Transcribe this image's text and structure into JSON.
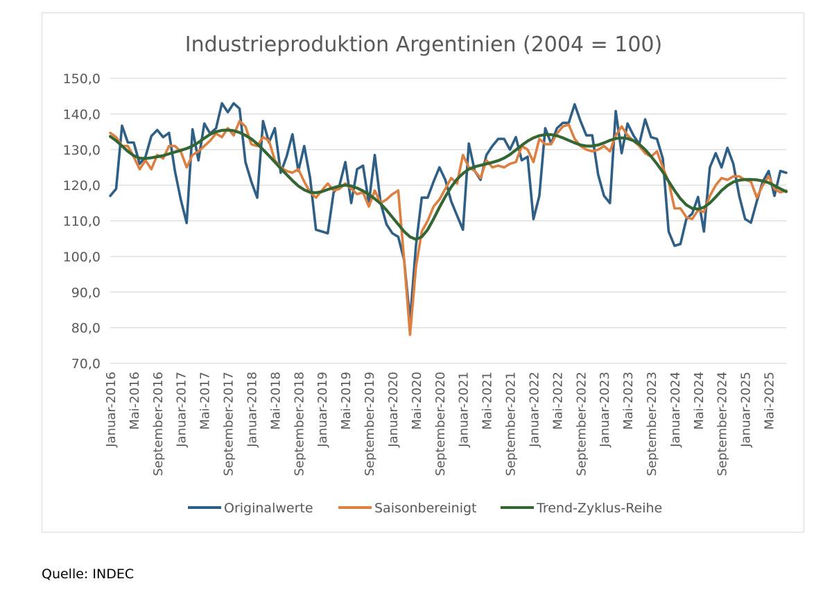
{
  "chart_data": {
    "type": "line",
    "title": "Industrieproduktion Argentinien (2004 = 100)",
    "xlabel": "",
    "ylabel": "",
    "ylim": [
      70,
      150
    ],
    "yticks": [
      "70,0",
      "80,0",
      "90,0",
      "100,0",
      "110,0",
      "120,0",
      "130,0",
      "140,0",
      "150,0"
    ],
    "y_grid": true,
    "legend_position": "bottom",
    "x_tick_labels": [
      "Januar-2016",
      "Mai-2016",
      "September-2016",
      "Januar-2017",
      "Mai-2017",
      "September-2017",
      "Januar-2018",
      "Mai-2018",
      "September-2018",
      "Januar-2019",
      "Mai-2019",
      "September-2019",
      "Januar-2020",
      "Mai-2020",
      "September-2020",
      "Januar-2021",
      "Mai-2021",
      "September-2021",
      "Januar-2022",
      "Mai-2022",
      "September-2022",
      "Januar-2023",
      "Mai-2023",
      "September-2023",
      "Januar-2024",
      "Mai-2024",
      "September-2024",
      "Januar-2025",
      "Mai-2025"
    ],
    "x_start": "2016-01",
    "x_end": "2025-10",
    "series": [
      {
        "name": "Originalwerte",
        "color": "#2e5f86",
        "values": [
          117.0,
          119.0,
          136.7,
          132.0,
          132.0,
          126.0,
          128.0,
          133.8,
          135.5,
          133.5,
          134.7,
          124.0,
          116.0,
          109.4,
          135.7,
          127.0,
          137.3,
          134.5,
          136.0,
          143.0,
          140.5,
          143.0,
          141.5,
          126.5,
          121.0,
          116.5,
          138.0,
          132.0,
          136.0,
          123.5,
          128.0,
          134.3,
          124.0,
          131.0,
          122.0,
          107.5,
          107.0,
          106.5,
          118.0,
          120.0,
          126.5,
          115.0,
          124.5,
          125.5,
          115.0,
          128.5,
          115.0,
          109.0,
          106.5,
          105.5,
          99.0,
          82.0,
          103.0,
          116.5,
          116.5,
          121.0,
          125.0,
          121.5,
          115.5,
          111.5,
          107.5,
          131.7,
          124.0,
          121.5,
          128.5,
          131.0,
          133.0,
          133.0,
          130.0,
          133.5,
          127.0,
          128.0,
          110.5,
          117.0,
          136.0,
          131.7,
          136.0,
          137.5,
          137.5,
          142.7,
          138.0,
          134.0,
          134.0,
          123.0,
          117.0,
          115.0,
          140.8,
          129.0,
          137.3,
          134.0,
          131.5,
          138.5,
          133.5,
          133.0,
          127.5,
          107.0,
          103.0,
          103.5,
          110.5,
          112.0,
          116.7,
          107.0,
          125.0,
          129.0,
          125.0,
          130.5,
          126.0,
          117.0,
          110.5,
          109.5,
          115.5,
          121.0,
          124.0,
          117.0,
          124.0,
          123.5
        ]
      },
      {
        "name": "Saisonbereinigt",
        "color": "#dc7f3f",
        "values": [
          134.7,
          133.5,
          131.0,
          131.0,
          128.0,
          124.5,
          127.0,
          124.5,
          128.5,
          127.5,
          131.0,
          131.0,
          129.5,
          125.0,
          128.5,
          129.5,
          131.0,
          132.5,
          134.5,
          133.5,
          136.0,
          134.0,
          138.0,
          136.5,
          131.5,
          131.0,
          133.5,
          132.5,
          127.0,
          125.0,
          124.0,
          123.5,
          124.5,
          121.0,
          118.0,
          116.5,
          118.5,
          120.5,
          118.5,
          119.0,
          120.5,
          119.0,
          117.5,
          118.0,
          114.0,
          118.5,
          115.0,
          116.0,
          117.5,
          118.5,
          99.0,
          78.0,
          97.0,
          107.0,
          110.0,
          114.0,
          116.0,
          119.0,
          122.0,
          120.5,
          128.5,
          125.0,
          124.0,
          122.0,
          127.0,
          125.0,
          125.5,
          125.0,
          126.0,
          126.5,
          131.0,
          130.0,
          126.5,
          133.0,
          131.5,
          131.5,
          134.5,
          136.5,
          137.0,
          133.0,
          131.0,
          130.0,
          129.5,
          130.0,
          131.0,
          129.5,
          134.0,
          136.5,
          134.0,
          132.5,
          131.0,
          129.0,
          128.0,
          129.5,
          125.0,
          121.0,
          113.5,
          113.5,
          111.0,
          110.5,
          113.0,
          112.5,
          117.0,
          120.0,
          122.0,
          121.5,
          122.5,
          122.5,
          121.5,
          121.0,
          116.5,
          120.0,
          122.5,
          119.0,
          118.0,
          118.5
        ]
      },
      {
        "name": "Trend-Zyklus-Reihe",
        "color": "#336633",
        "values": [
          133.7,
          132.5,
          131.0,
          129.5,
          128.3,
          127.6,
          127.5,
          127.7,
          128.0,
          128.3,
          128.8,
          129.3,
          129.8,
          130.3,
          131.0,
          132.0,
          133.2,
          134.3,
          135.0,
          135.4,
          135.5,
          135.3,
          134.8,
          134.0,
          133.0,
          131.6,
          130.0,
          128.3,
          126.5,
          124.7,
          123.0,
          121.3,
          119.8,
          118.7,
          118.0,
          117.9,
          118.2,
          118.8,
          119.3,
          119.8,
          120.0,
          119.8,
          119.2,
          118.4,
          117.4,
          116.2,
          114.8,
          113.0,
          111.0,
          109.0,
          107.0,
          105.5,
          104.8,
          105.5,
          107.5,
          110.5,
          113.8,
          116.8,
          119.5,
          121.7,
          123.3,
          124.5,
          125.2,
          125.6,
          126.0,
          126.4,
          126.9,
          127.6,
          128.6,
          129.9,
          131.2,
          132.4,
          133.3,
          133.9,
          134.2,
          134.2,
          133.9,
          133.3,
          132.6,
          131.9,
          131.3,
          131.0,
          131.0,
          131.3,
          131.9,
          132.6,
          133.1,
          133.3,
          133.1,
          132.5,
          131.5,
          130.0,
          128.1,
          126.0,
          123.7,
          121.1,
          118.5,
          116.2,
          114.5,
          113.5,
          113.3,
          113.8,
          115.0,
          116.7,
          118.5,
          119.9,
          120.9,
          121.4,
          121.6,
          121.6,
          121.5,
          121.2,
          120.7,
          119.9,
          119.0,
          118.2
        ]
      }
    ]
  },
  "source": "Quelle: INDEC"
}
